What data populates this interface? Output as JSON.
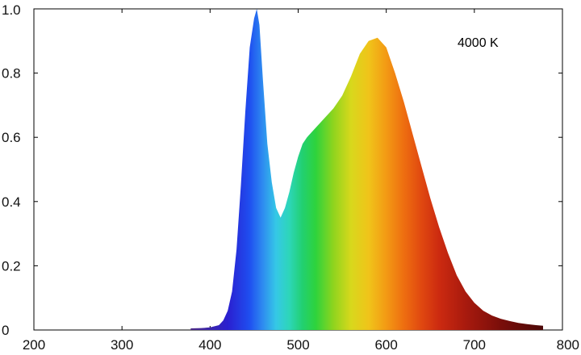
{
  "chart_data": {
    "type": "area",
    "title": "",
    "xlabel": "",
    "ylabel": "",
    "xlim": [
      200,
      800
    ],
    "ylim": [
      0,
      1.0
    ],
    "x_ticks": [
      200,
      300,
      400,
      500,
      600,
      700,
      800
    ],
    "x_tick_labels": [
      "200",
      "300",
      "400",
      "500",
      "600",
      "700",
      "800"
    ],
    "y_ticks": [
      0,
      0.2,
      0.4,
      0.6,
      0.8,
      1.0
    ],
    "y_tick_labels": [
      "0",
      "0.2",
      "0.4",
      "0.6",
      "0.8",
      "1.0"
    ],
    "grid": false,
    "annotation": "4000 K",
    "fill": "visible-spectrum gradient (violet to dark red by wavelength)",
    "series": [
      {
        "x": [
          378,
          390,
          400,
          410,
          415,
          420,
          425,
          430,
          435,
          440,
          445,
          450,
          453,
          456,
          460,
          465,
          470,
          475,
          480,
          485,
          490,
          495,
          500,
          505,
          510,
          520,
          530,
          540,
          550,
          560,
          570,
          580,
          590,
          600,
          610,
          620,
          630,
          640,
          650,
          660,
          670,
          680,
          690,
          700,
          710,
          720,
          730,
          740,
          750,
          760,
          770,
          778
        ],
        "y": [
          0.005,
          0.006,
          0.008,
          0.015,
          0.03,
          0.06,
          0.12,
          0.25,
          0.45,
          0.68,
          0.88,
          0.97,
          1.0,
          0.95,
          0.78,
          0.58,
          0.46,
          0.38,
          0.35,
          0.38,
          0.43,
          0.49,
          0.54,
          0.58,
          0.6,
          0.63,
          0.66,
          0.69,
          0.73,
          0.79,
          0.86,
          0.9,
          0.91,
          0.88,
          0.8,
          0.71,
          0.61,
          0.51,
          0.41,
          0.32,
          0.24,
          0.17,
          0.12,
          0.085,
          0.06,
          0.045,
          0.035,
          0.028,
          0.022,
          0.018,
          0.015,
          0.013
        ]
      }
    ]
  }
}
